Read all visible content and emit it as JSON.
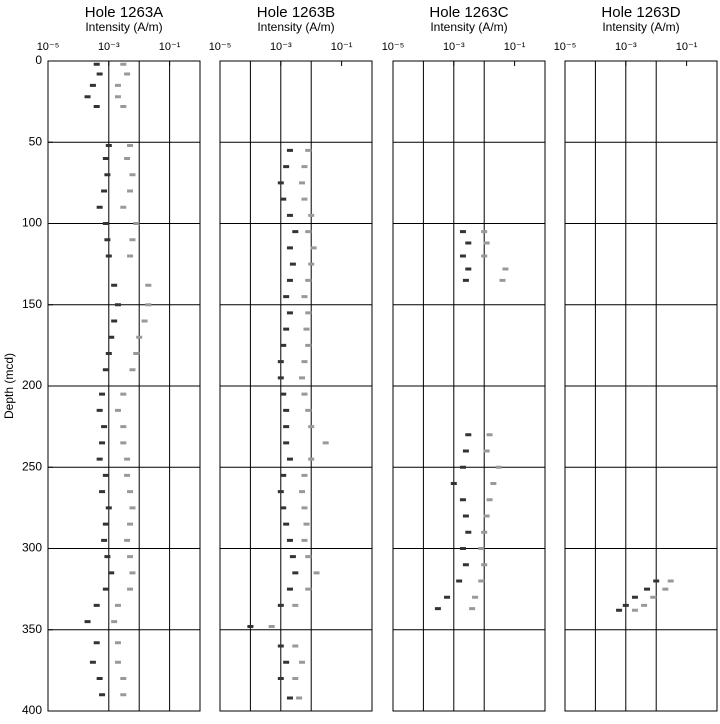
{
  "chart_data": [
    {
      "type": "scatter",
      "title": "Hole 1263A",
      "subtitle": "Intensity (A/m)",
      "ylabel": "Depth (mcd)",
      "xscale": "log",
      "xlim": [
        1e-05,
        1
      ],
      "ylim": [
        0,
        400
      ],
      "y_inverted": true,
      "xticks": [
        {
          "value": 1e-05,
          "label": "10⁻⁵"
        },
        {
          "value": 0.001,
          "label": "10⁻³"
        },
        {
          "value": 0.1,
          "label": "10⁻¹"
        }
      ],
      "yticks": [
        0,
        50,
        100,
        150,
        200,
        250,
        300,
        350,
        400
      ],
      "xgrid": [
        0.001,
        0.01,
        0.1
      ],
      "ygrid": [
        50,
        100,
        150,
        200,
        250,
        300,
        350
      ],
      "series": [
        {
          "color": "#333333",
          "values": [
            2,
            8,
            15,
            22,
            28,
            52,
            60,
            70,
            80,
            90,
            100,
            110,
            120,
            138,
            150,
            160,
            170,
            180,
            190,
            205,
            215,
            225,
            235,
            245,
            255,
            265,
            275,
            285,
            295,
            305,
            315,
            325,
            335,
            345,
            358,
            370,
            380,
            390
          ],
          "x": [
            0.0004,
            0.0005,
            0.0003,
            0.0002,
            0.0004,
            0.001,
            0.0008,
            0.0009,
            0.0007,
            0.0005,
            0.0008,
            0.0009,
            0.001,
            0.0015,
            0.002,
            0.0015,
            0.0012,
            0.001,
            0.0008,
            0.0006,
            0.0005,
            0.0007,
            0.0006,
            0.0005,
            0.0008,
            0.0006,
            0.001,
            0.0008,
            0.0007,
            0.0009,
            0.0012,
            0.0008,
            0.0004,
            0.0002,
            0.0004,
            0.0003,
            0.0005,
            0.0006
          ]
        },
        {
          "color": "#999999",
          "values": [
            2,
            8,
            15,
            22,
            28,
            52,
            60,
            70,
            80,
            90,
            100,
            110,
            120,
            138,
            150,
            160,
            170,
            180,
            190,
            205,
            215,
            225,
            235,
            245,
            255,
            265,
            275,
            285,
            295,
            305,
            315,
            325,
            335,
            345,
            358,
            370,
            380,
            390
          ],
          "x": [
            0.003,
            0.004,
            0.002,
            0.002,
            0.003,
            0.005,
            0.004,
            0.006,
            0.005,
            0.003,
            0.008,
            0.006,
            0.005,
            0.02,
            0.02,
            0.015,
            0.01,
            0.008,
            0.006,
            0.003,
            0.002,
            0.003,
            0.003,
            0.004,
            0.004,
            0.005,
            0.006,
            0.005,
            0.004,
            0.005,
            0.006,
            0.005,
            0.002,
            0.0015,
            0.002,
            0.002,
            0.003,
            0.003
          ]
        }
      ]
    },
    {
      "type": "scatter",
      "title": "Hole 1263B",
      "subtitle": "Intensity (A/m)",
      "xscale": "log",
      "xlim": [
        1e-05,
        1
      ],
      "ylim": [
        0,
        400
      ],
      "y_inverted": true,
      "xticks": [
        {
          "value": 1e-05,
          "label": "10⁻⁵"
        },
        {
          "value": 0.001,
          "label": "10⁻³"
        },
        {
          "value": 0.1,
          "label": "10⁻¹"
        }
      ],
      "xgrid": [
        0.0001,
        0.001,
        0.01
      ],
      "ygrid": [
        50,
        100,
        150,
        200,
        250,
        300,
        350
      ],
      "series": [
        {
          "color": "#333333",
          "values": [
            55,
            65,
            75,
            85,
            95,
            105,
            115,
            125,
            135,
            145,
            155,
            165,
            175,
            185,
            195,
            205,
            215,
            225,
            235,
            245,
            255,
            265,
            275,
            285,
            295,
            305,
            315,
            325,
            335,
            348,
            360,
            370,
            380,
            392
          ],
          "x": [
            0.002,
            0.0015,
            0.001,
            0.0012,
            0.002,
            0.003,
            0.002,
            0.0025,
            0.002,
            0.0015,
            0.002,
            0.0015,
            0.0012,
            0.001,
            0.001,
            0.0012,
            0.0015,
            0.0015,
            0.0015,
            0.002,
            0.0012,
            0.001,
            0.0012,
            0.0015,
            0.002,
            0.0025,
            0.003,
            0.002,
            0.001,
            0.0001,
            0.001,
            0.0015,
            0.001,
            0.002
          ]
        },
        {
          "color": "#999999",
          "values": [
            55,
            65,
            75,
            85,
            95,
            105,
            115,
            125,
            135,
            145,
            155,
            165,
            175,
            185,
            195,
            205,
            215,
            225,
            235,
            245,
            255,
            265,
            275,
            285,
            295,
            305,
            315,
            325,
            335,
            348,
            360,
            370,
            380,
            392
          ],
          "x": [
            0.008,
            0.006,
            0.005,
            0.006,
            0.01,
            0.008,
            0.012,
            0.01,
            0.008,
            0.006,
            0.008,
            0.007,
            0.008,
            0.006,
            0.005,
            0.006,
            0.008,
            0.01,
            0.03,
            0.01,
            0.006,
            0.005,
            0.006,
            0.007,
            0.006,
            0.008,
            0.015,
            0.008,
            0.003,
            0.0005,
            0.003,
            0.005,
            0.003,
            0.004
          ]
        }
      ]
    },
    {
      "type": "scatter",
      "title": "Hole 1263C",
      "subtitle": "Intensity (A/m)",
      "xscale": "log",
      "xlim": [
        1e-05,
        1
      ],
      "ylim": [
        0,
        400
      ],
      "y_inverted": true,
      "xticks": [
        {
          "value": 1e-05,
          "label": "10⁻⁵"
        },
        {
          "value": 0.001,
          "label": "10⁻³"
        },
        {
          "value": 0.1,
          "label": "10⁻¹"
        }
      ],
      "xgrid": [
        0.0001,
        0.001,
        0.01
      ],
      "ygrid": [
        50,
        100,
        150,
        200,
        250,
        300,
        350
      ],
      "series": [
        {
          "color": "#333333",
          "values": [
            105,
            112,
            120,
            128,
            135,
            230,
            240,
            250,
            260,
            270,
            280,
            290,
            300,
            310,
            320,
            330,
            337
          ],
          "x": [
            0.002,
            0.003,
            0.002,
            0.003,
            0.0025,
            0.003,
            0.0025,
            0.002,
            0.001,
            0.002,
            0.0025,
            0.003,
            0.002,
            0.0025,
            0.0015,
            0.0006,
            0.0003
          ]
        },
        {
          "color": "#999999",
          "values": [
            105,
            112,
            120,
            128,
            135,
            230,
            240,
            250,
            260,
            270,
            280,
            290,
            300,
            310,
            320,
            330,
            337
          ],
          "x": [
            0.01,
            0.012,
            0.01,
            0.05,
            0.04,
            0.015,
            0.012,
            0.03,
            0.02,
            0.015,
            0.012,
            0.01,
            0.008,
            0.01,
            0.008,
            0.005,
            0.004
          ]
        }
      ]
    },
    {
      "type": "scatter",
      "title": "Hole 1263D",
      "subtitle": "Intensity (A/m)",
      "xscale": "log",
      "xlim": [
        1e-05,
        1
      ],
      "ylim": [
        0,
        400
      ],
      "y_inverted": true,
      "xticks": [
        {
          "value": 1e-05,
          "label": "10⁻⁵"
        },
        {
          "value": 0.001,
          "label": "10⁻³"
        },
        {
          "value": 0.1,
          "label": "10⁻¹"
        }
      ],
      "xgrid": [
        0.0001,
        0.001,
        0.01
      ],
      "ygrid": [
        50,
        100,
        150,
        200,
        250,
        300,
        350
      ],
      "series": [
        {
          "color": "#333333",
          "values": [
            320,
            325,
            330,
            335,
            338
          ],
          "x": [
            0.01,
            0.005,
            0.002,
            0.001,
            0.0006
          ]
        },
        {
          "color": "#999999",
          "values": [
            320,
            325,
            330,
            335,
            338
          ],
          "x": [
            0.03,
            0.02,
            0.008,
            0.004,
            0.002
          ]
        }
      ]
    }
  ]
}
